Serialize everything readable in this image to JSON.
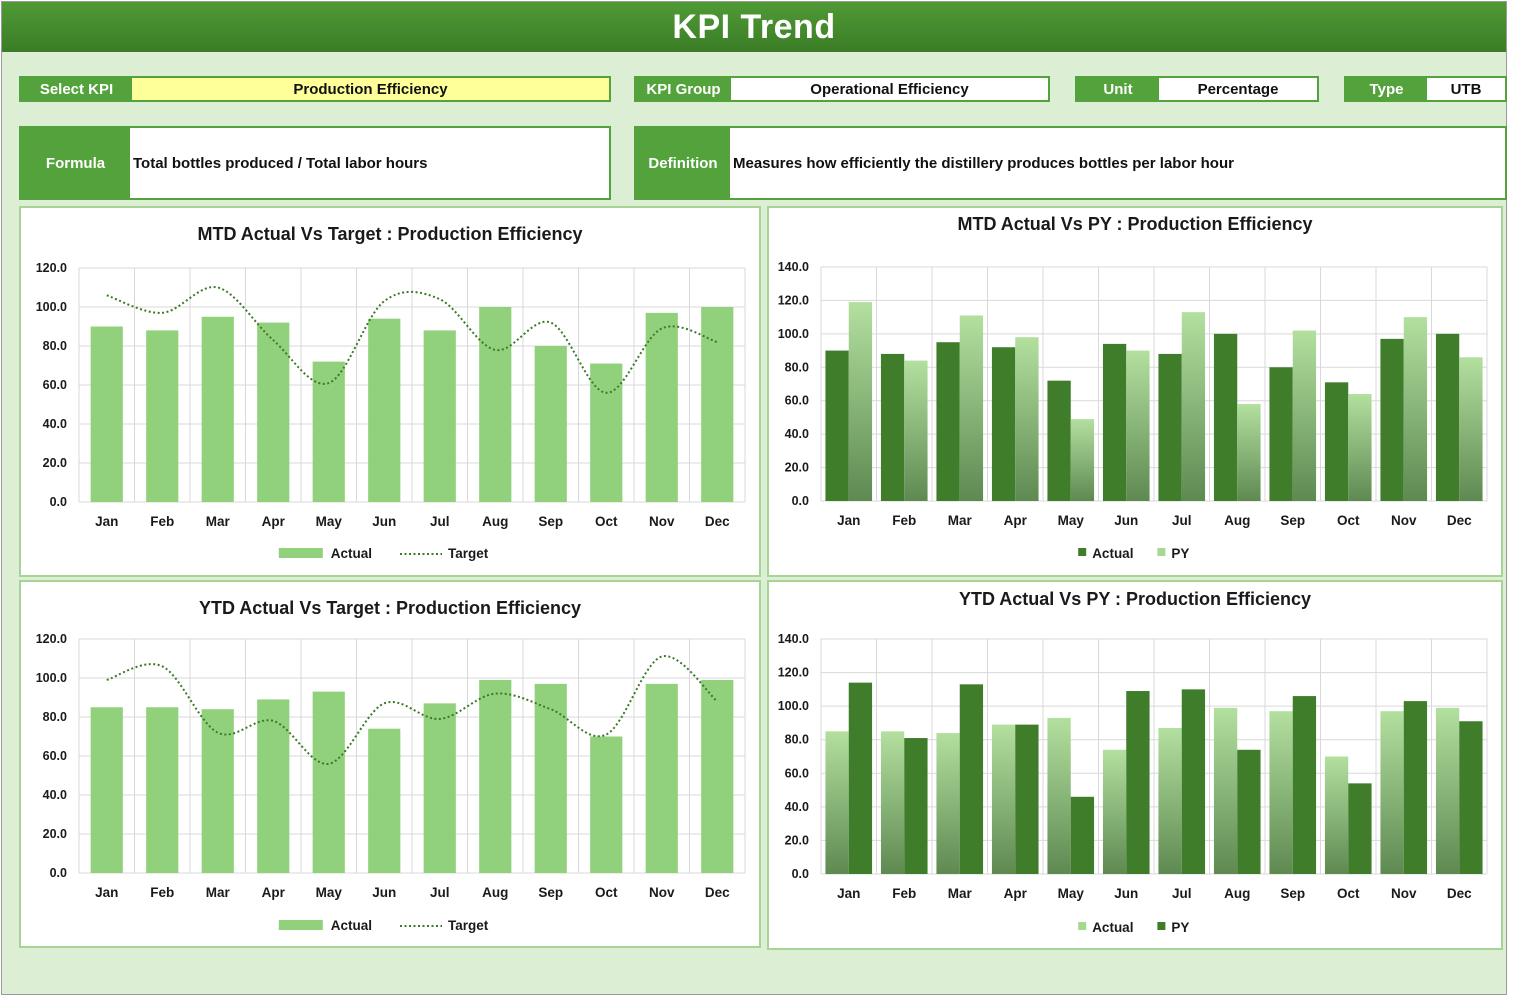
{
  "header": {
    "title": "KPI Trend"
  },
  "selectors": {
    "select_kpi": {
      "label": "Select KPI",
      "value": "Production Efficiency"
    },
    "kpi_group": {
      "label": "KPI Group",
      "value": "Operational Efficiency"
    },
    "unit": {
      "label": "Unit",
      "value": "Percentage"
    },
    "type": {
      "label": "Type",
      "value": "UTB"
    }
  },
  "info": {
    "formula": {
      "label": "Formula",
      "value": "Total bottles produced / Total labor hours"
    },
    "definition": {
      "label": "Definition",
      "value": "Measures how efficiently the distillery produces bottles per labor hour"
    }
  },
  "colors": {
    "light_bar": "#92d17c",
    "dark_bar": "#3f7d2b",
    "target_line": "#3a7a26",
    "accent": "#54a23b",
    "selected_value_bg": "#ffff99"
  },
  "chart_data": [
    {
      "id": "mtd_target",
      "type": "bar",
      "title": "MTD Actual Vs Target : Production Efficiency",
      "categories": [
        "Jan",
        "Feb",
        "Mar",
        "Apr",
        "May",
        "Jun",
        "Jul",
        "Aug",
        "Sep",
        "Oct",
        "Nov",
        "Dec"
      ],
      "ylim": [
        0,
        120
      ],
      "yticks": [
        "0.0",
        "20.0",
        "40.0",
        "60.0",
        "80.0",
        "100.0",
        "120.0"
      ],
      "grid": true,
      "legend": "bottom",
      "series": [
        {
          "name": "Actual",
          "kind": "bar",
          "style": "light",
          "values": [
            90,
            88,
            95,
            92,
            72,
            94,
            88,
            100,
            80,
            71,
            97,
            100
          ]
        },
        {
          "name": "Target",
          "kind": "line",
          "style": "dotted",
          "values": [
            106,
            97,
            110,
            83,
            61,
            103,
            104,
            78,
            92,
            56,
            89,
            82
          ]
        }
      ]
    },
    {
      "id": "mtd_py",
      "type": "bar",
      "title": "MTD Actual Vs PY : Production Efficiency",
      "categories": [
        "Jan",
        "Feb",
        "Mar",
        "Apr",
        "May",
        "Jun",
        "Jul",
        "Aug",
        "Sep",
        "Oct",
        "Nov",
        "Dec"
      ],
      "ylim": [
        0,
        140
      ],
      "yticks": [
        "0.0",
        "20.0",
        "40.0",
        "60.0",
        "80.0",
        "100.0",
        "120.0",
        "140.0"
      ],
      "grid": true,
      "legend": "bottom",
      "series": [
        {
          "name": "Actual",
          "kind": "bar",
          "style": "dark",
          "values": [
            90,
            88,
            95,
            92,
            72,
            94,
            88,
            100,
            80,
            71,
            97,
            100
          ]
        },
        {
          "name": "PY",
          "kind": "bar",
          "style": "lightgrad",
          "values": [
            119,
            84,
            111,
            98,
            49,
            90,
            113,
            58,
            102,
            64,
            110,
            86
          ]
        }
      ]
    },
    {
      "id": "ytd_target",
      "type": "bar",
      "title": "YTD Actual Vs Target : Production Efficiency",
      "categories": [
        "Jan",
        "Feb",
        "Mar",
        "Apr",
        "May",
        "Jun",
        "Jul",
        "Aug",
        "Sep",
        "Oct",
        "Nov",
        "Dec"
      ],
      "ylim": [
        0,
        120
      ],
      "yticks": [
        "0.0",
        "20.0",
        "40.0",
        "60.0",
        "80.0",
        "100.0",
        "120.0"
      ],
      "grid": true,
      "legend": "bottom",
      "series": [
        {
          "name": "Actual",
          "kind": "bar",
          "style": "light",
          "values": [
            85,
            85,
            84,
            89,
            93,
            74,
            87,
            99,
            97,
            70,
            97,
            99
          ]
        },
        {
          "name": "Target",
          "kind": "line",
          "style": "dotted",
          "values": [
            99,
            106,
            72,
            78,
            56,
            87,
            79,
            92,
            84,
            71,
            111,
            88
          ]
        }
      ]
    },
    {
      "id": "ytd_py",
      "type": "bar",
      "title": "YTD Actual Vs PY : Production Efficiency",
      "categories": [
        "Jan",
        "Feb",
        "Mar",
        "Apr",
        "May",
        "Jun",
        "Jul",
        "Aug",
        "Sep",
        "Oct",
        "Nov",
        "Dec"
      ],
      "ylim": [
        0,
        140
      ],
      "yticks": [
        "0.0",
        "20.0",
        "40.0",
        "60.0",
        "80.0",
        "100.0",
        "120.0",
        "140.0"
      ],
      "grid": true,
      "legend": "bottom",
      "series": [
        {
          "name": "Actual",
          "kind": "bar",
          "style": "lightgrad",
          "values": [
            85,
            85,
            84,
            89,
            93,
            74,
            87,
            99,
            97,
            70,
            97,
            99
          ]
        },
        {
          "name": "PY",
          "kind": "bar",
          "style": "dark",
          "values": [
            114,
            81,
            113,
            89,
            46,
            109,
            110,
            74,
            106,
            54,
            103,
            91
          ]
        }
      ]
    }
  ]
}
